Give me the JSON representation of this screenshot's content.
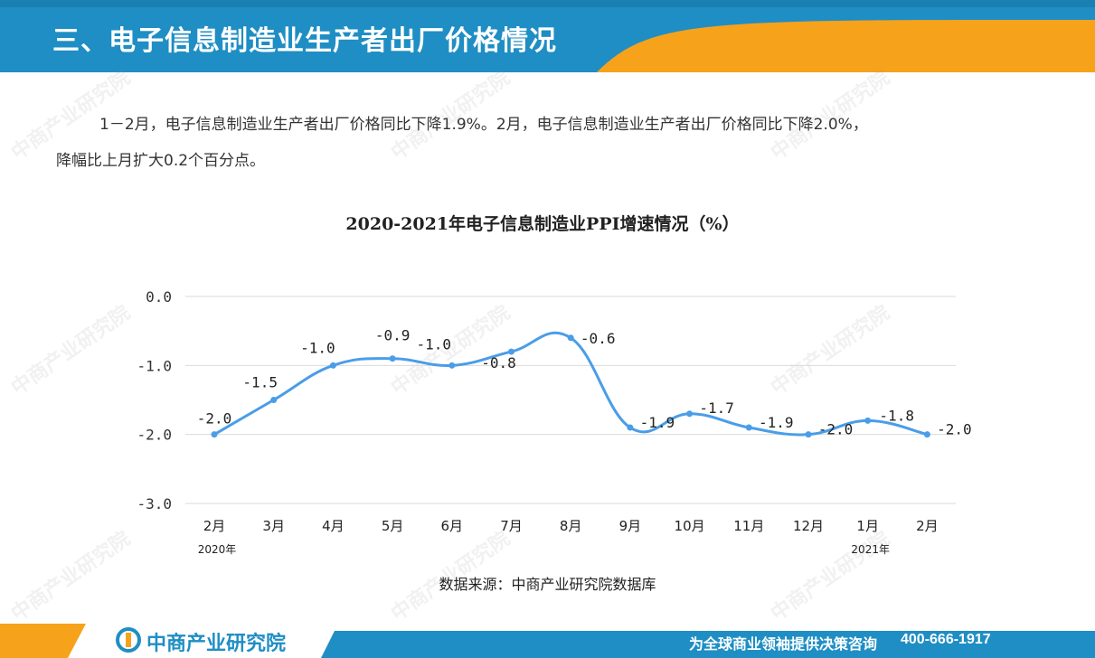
{
  "header": {
    "title": "三、电子信息制造业生产者出厂价格情况"
  },
  "paragraph": {
    "line1": "1－2月，电子信息制造业生产者出厂价格同比下降1.9%。2月，电子信息制造业生产者出厂价格同比下降2.0%，",
    "line2": "降幅比上月扩大0.2个百分点。"
  },
  "chart_data": {
    "type": "line",
    "title": "2020-2021年电子信息制造业PPI增速情况（%）",
    "categories": [
      "2月",
      "3月",
      "4月",
      "5月",
      "6月",
      "7月",
      "8月",
      "9月",
      "10月",
      "11月",
      "12月",
      "1月",
      "2月"
    ],
    "year_labels": [
      {
        "index": 0,
        "text": "2020年"
      },
      {
        "index": 11,
        "text": "2021年"
      }
    ],
    "series": [
      {
        "values": [
          -2.0,
          -1.5,
          -1.0,
          -0.9,
          -1.0,
          -0.8,
          -0.6,
          -1.9,
          -1.7,
          -1.9,
          -2.0,
          -1.8,
          -2.0
        ]
      }
    ],
    "value_labels": [
      "-2.0",
      "-1.5",
      "-1.0",
      "-0.9",
      "-1.0",
      "-0.8",
      "-0.6",
      "-1.9",
      "-1.7",
      "-1.9",
      "-2.0",
      "-1.8",
      "-2.0"
    ],
    "yticks": [
      "0.0",
      "-1.0",
      "-2.0",
      "-3.0"
    ],
    "ylim": [
      -3.0,
      0.0
    ],
    "grid": true,
    "color": "#4a9de8"
  },
  "source": "数据来源：中商产业研究院数据库",
  "footer": {
    "brand": "中商产业研究院",
    "slogan": "为全球商业领袖提供决策咨询",
    "phone": "400-666-1917"
  },
  "colors": {
    "blue": "#1f8ec4",
    "orange": "#f7a21b"
  }
}
